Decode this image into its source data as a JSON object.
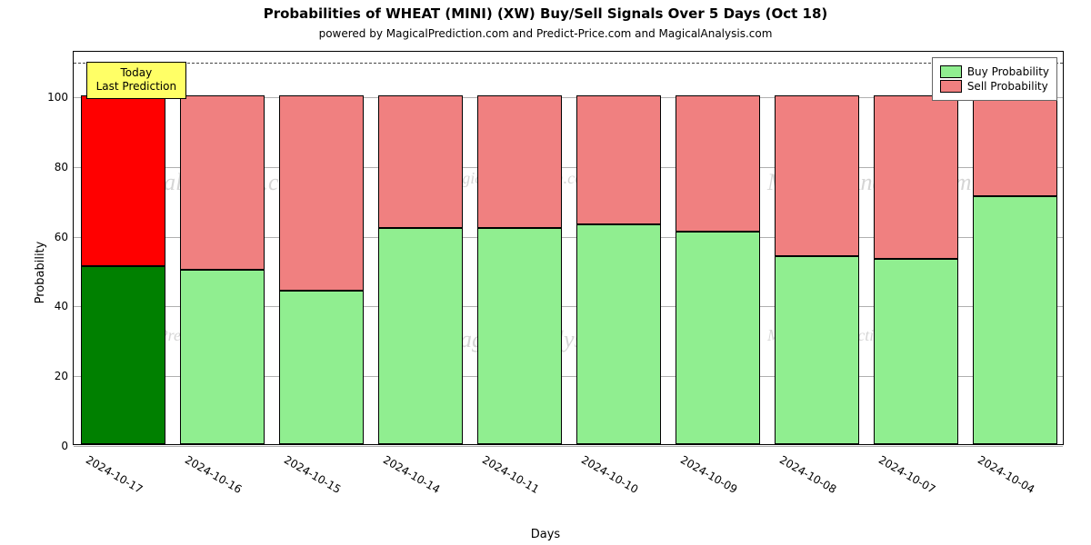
{
  "title": "Probabilities of WHEAT (MINI) (XW) Buy/Sell Signals Over 5 Days (Oct 18)",
  "title_fontsize": 15,
  "subtitle": "powered by MagicalPrediction.com and Predict-Price.com and MagicalAnalysis.com",
  "subtitle_fontsize": 12,
  "xlabel": "Days",
  "ylabel": "Probability",
  "axis_label_fontsize": 13,
  "chart": {
    "type": "stacked-bar",
    "ylim": [
      0,
      113
    ],
    "yticks": [
      0,
      20,
      40,
      60,
      80,
      100
    ],
    "grid_color": "#b0b0b0",
    "background_color": "#ffffff",
    "border_color": "#000000",
    "bar_width": 0.86,
    "n_categories": 10,
    "categories": [
      "2024-10-17",
      "2024-10-16",
      "2024-10-15",
      "2024-10-14",
      "2024-10-11",
      "2024-10-10",
      "2024-10-09",
      "2024-10-08",
      "2024-10-07",
      "2024-10-04"
    ],
    "buy_values": [
      51,
      50,
      44,
      62,
      62,
      63,
      61,
      54,
      53,
      71
    ],
    "sell_values": [
      49,
      50,
      56,
      38,
      38,
      37,
      39,
      46,
      47,
      29
    ],
    "highlight_index": 0,
    "colors": {
      "buy_normal": "#90ee90",
      "sell_normal": "#f08080",
      "buy_highlight": "#008000",
      "sell_highlight": "#ff0000"
    },
    "dashed_line_y": 110,
    "dashed_line_color": "#444444"
  },
  "annotation": {
    "line1": "Today",
    "line2": "Last Prediction",
    "bg_color": "#ffff66",
    "border_color": "#000000",
    "fontsize": 12
  },
  "legend": {
    "items": [
      {
        "label": "Buy Probability",
        "color": "#90ee90"
      },
      {
        "label": "Sell Probability",
        "color": "#f08080"
      }
    ]
  },
  "watermarks": {
    "texts": [
      "MagicalAnalysis.com",
      "MagicalPrediction.com"
    ],
    "fontsize1": 26,
    "fontsize2": 18,
    "color": "#888888",
    "opacity": 0.35
  }
}
